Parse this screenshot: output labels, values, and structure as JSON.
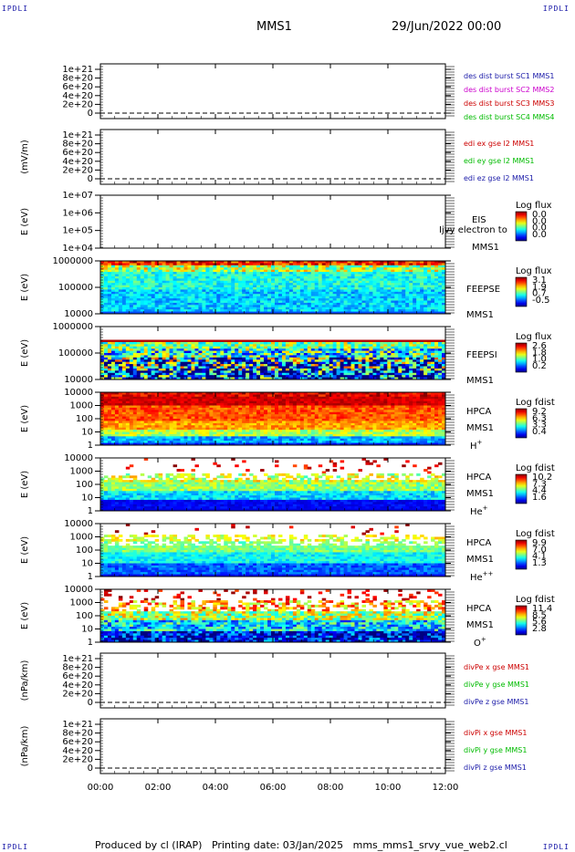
{
  "corners": {
    "tl": "IPDLI",
    "tr": "IPDLI",
    "bl": "IPDLI",
    "br": "IPDLI"
  },
  "header": {
    "spacecraft": "MMS1",
    "datetime": "29/Jun/2022 00:00"
  },
  "footer": {
    "text": "Produced by cl (IRAP)   Printing date: 03/Jan/2025   mms_mms1_srvy_vue_web2.cl"
  },
  "colors": {
    "c1": "#1a1aa8",
    "c2": "#cc00cc",
    "c3": "#cc0000",
    "c4": "#00bb00"
  },
  "chart_data": {
    "type": "heatmap",
    "x_ticks": [
      "00:00",
      "02:00",
      "04:00",
      "06:00",
      "08:00",
      "10:00",
      "12:00"
    ],
    "x_range_hours": [
      0,
      12
    ],
    "panels": [
      {
        "id": "p1",
        "kind": "line",
        "ylabel": "",
        "yticks": [
          "1e+21",
          "8e+20",
          "6e+20",
          "4e+20",
          "2e+20",
          "0"
        ],
        "legend": [
          {
            "text": "des dist burst SC1 MMS1",
            "color": "#1a1aa8"
          },
          {
            "text": "des dist burst SC2 MMS2",
            "color": "#cc00cc"
          },
          {
            "text": "des dist burst SC3 MMS3",
            "color": "#cc0000"
          },
          {
            "text": "des dist burst SC4 MMS4",
            "color": "#00bb00"
          }
        ]
      },
      {
        "id": "p2",
        "kind": "line",
        "ylabel": "(mV/m)",
        "yticks": [
          "1e+21",
          "8e+20",
          "6e+20",
          "4e+20",
          "2e+20",
          "0"
        ],
        "legend": [
          {
            "text": "edi ex gse l2 MMS1",
            "color": "#cc0000"
          },
          {
            "text": "edi ey gse l2 MMS1",
            "color": "#00bb00"
          },
          {
            "text": "edi ez gse l2 MMS1",
            "color": "#1a1aa8"
          }
        ]
      },
      {
        "id": "p3",
        "kind": "spec",
        "ylabel": "E (eV)",
        "yticks": [
          "1e+07",
          "1e+06",
          "1e+05",
          "1e+04"
        ],
        "labels": [
          "EIS",
          "MMS1"
        ],
        "overlay": "Ijvy electron to",
        "cb_title": "Log flux",
        "cb_ticks": [
          "0.0",
          "0.0",
          "0.0",
          "0.0"
        ],
        "empty": true
      },
      {
        "id": "p4",
        "kind": "spec",
        "ylabel": "E (eV)",
        "yticks": [
          "1000000",
          "100000",
          "10000"
        ],
        "labels": [
          "FEEPSE",
          "MMS1"
        ],
        "cb_title": "Log flux",
        "cb_ticks": [
          "3.1",
          "1.9",
          "0.7",
          "-0.5"
        ]
      },
      {
        "id": "p5",
        "kind": "spec",
        "ylabel": "E (eV)",
        "yticks": [
          "1000000",
          "100000",
          "10000"
        ],
        "labels": [
          "FEEPSI",
          "MMS1"
        ],
        "cb_title": "Log flux",
        "cb_ticks": [
          "2.6",
          "1.8",
          "1.0",
          "0.2"
        ]
      },
      {
        "id": "p6",
        "kind": "spec",
        "ylabel": "E (eV)",
        "yticks": [
          "10000",
          "1000",
          "100",
          "10",
          "1"
        ],
        "labels": [
          "HPCA",
          "MMS1"
        ],
        "species": "H",
        "sup": "+",
        "cb_title": "Log fdist",
        "cb_ticks": [
          "9.2",
          "6.3",
          "3.3",
          "0.4"
        ]
      },
      {
        "id": "p7",
        "kind": "spec",
        "ylabel": "E (eV)",
        "yticks": [
          "10000",
          "1000",
          "100",
          "10",
          "1"
        ],
        "labels": [
          "HPCA",
          "MMS1"
        ],
        "species": "He",
        "sup": "+",
        "cb_title": "Log fdist",
        "cb_ticks": [
          "10.2",
          "7.3",
          "4.4",
          "1.6"
        ]
      },
      {
        "id": "p8",
        "kind": "spec",
        "ylabel": "E (eV)",
        "yticks": [
          "10000",
          "1000",
          "100",
          "10",
          "1"
        ],
        "labels": [
          "HPCA",
          "MMS1"
        ],
        "species": "He",
        "sup": "++",
        "cb_title": "Log fdist",
        "cb_ticks": [
          "9.9",
          "7.0",
          "4.1",
          "1.3"
        ]
      },
      {
        "id": "p9",
        "kind": "spec",
        "ylabel": "E (eV)",
        "yticks": [
          "10000",
          "1000",
          "100",
          "10",
          "1"
        ],
        "labels": [
          "HPCA",
          "MMS1"
        ],
        "species": "O",
        "sup": "+",
        "cb_title": "Log fdist",
        "cb_ticks": [
          "11.4",
          "8.5",
          "5.6",
          "2.8"
        ]
      },
      {
        "id": "p10",
        "kind": "line",
        "ylabel": "(nPa/km)",
        "yticks": [
          "1e+21",
          "8e+20",
          "6e+20",
          "4e+20",
          "2e+20",
          "0"
        ],
        "legend": [
          {
            "text": "divPe x gse MMS1",
            "color": "#cc0000"
          },
          {
            "text": "divPe y gse MMS1",
            "color": "#00bb00"
          },
          {
            "text": "divPe z gse MMS1",
            "color": "#1a1aa8"
          }
        ]
      },
      {
        "id": "p11",
        "kind": "line",
        "ylabel": "(nPa/km)",
        "yticks": [
          "1e+21",
          "8e+20",
          "6e+20",
          "4e+20",
          "2e+20",
          "0"
        ],
        "legend": [
          {
            "text": "divPi x gse MMS1",
            "color": "#cc0000"
          },
          {
            "text": "divPi y gse MMS1",
            "color": "#00bb00"
          },
          {
            "text": "divPi z gse MMS1",
            "color": "#1a1aa8"
          }
        ]
      }
    ]
  }
}
